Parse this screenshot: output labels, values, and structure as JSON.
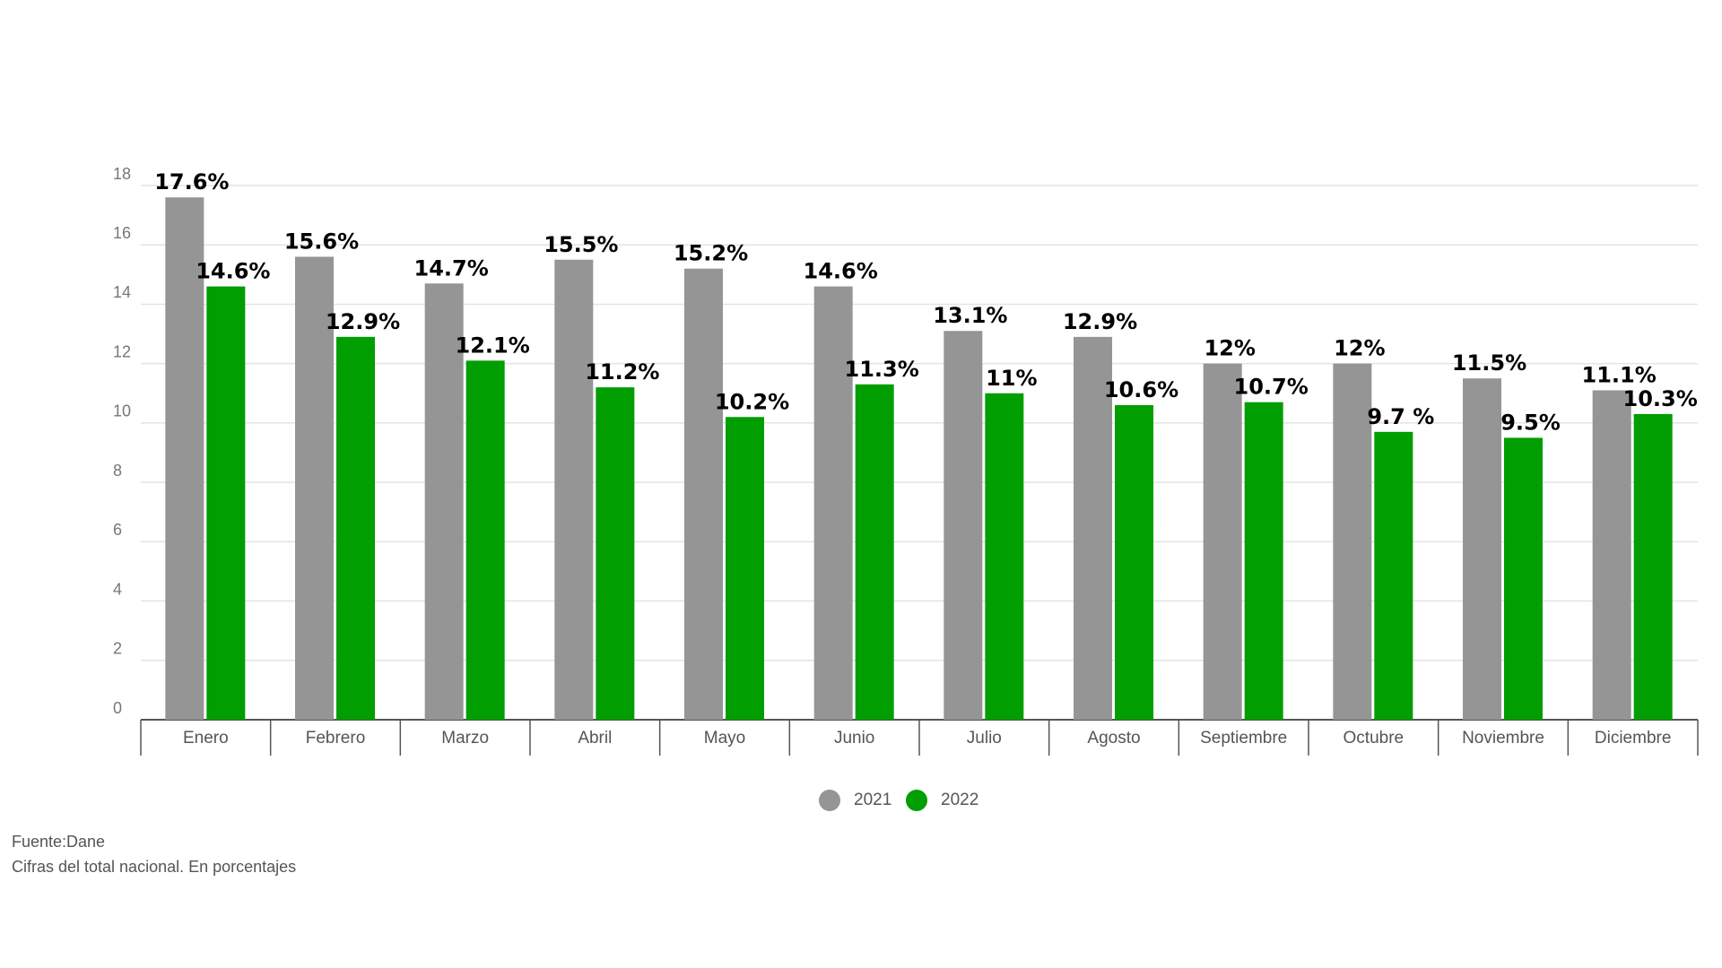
{
  "chart_data": {
    "type": "bar",
    "categories": [
      "Enero",
      "Febrero",
      "Marzo",
      "Abril",
      "Mayo",
      "Junio",
      "Julio",
      "Agosto",
      "Septiembre",
      "Octubre",
      "Noviembre",
      "Diciembre"
    ],
    "series": [
      {
        "name": "2021",
        "color": "#959595",
        "values": [
          17.6,
          15.6,
          14.7,
          15.5,
          15.2,
          14.6,
          13.1,
          12.9,
          12,
          12,
          11.5,
          11.1
        ],
        "value_labels": [
          "17.6%",
          "15.6%",
          "14.7%",
          "15.5%",
          "15.2%",
          "14.6%",
          "13.1%",
          "12.9%",
          "12%",
          "12%",
          "11.5%",
          "11.1%"
        ]
      },
      {
        "name": "2022",
        "color": "#009e00",
        "values": [
          14.6,
          12.9,
          12.1,
          11.2,
          10.2,
          11.3,
          11,
          10.6,
          10.7,
          9.7,
          9.5,
          10.3
        ],
        "value_labels": [
          "14.6%",
          "12.9%",
          "12.1%",
          "11.2%",
          "10.2%",
          "11.3%",
          "11%",
          "10.6%",
          "10.7%",
          "9.7 %",
          "9.5%",
          "10.3%"
        ]
      }
    ],
    "ylim": [
      0,
      18
    ],
    "yticks": [
      0,
      2,
      4,
      6,
      8,
      10,
      12,
      14,
      16,
      18
    ],
    "grid": true,
    "legend": "bottom",
    "source": "Fuente:Dane",
    "note": "Cifras del total nacional. En porcentajes"
  }
}
